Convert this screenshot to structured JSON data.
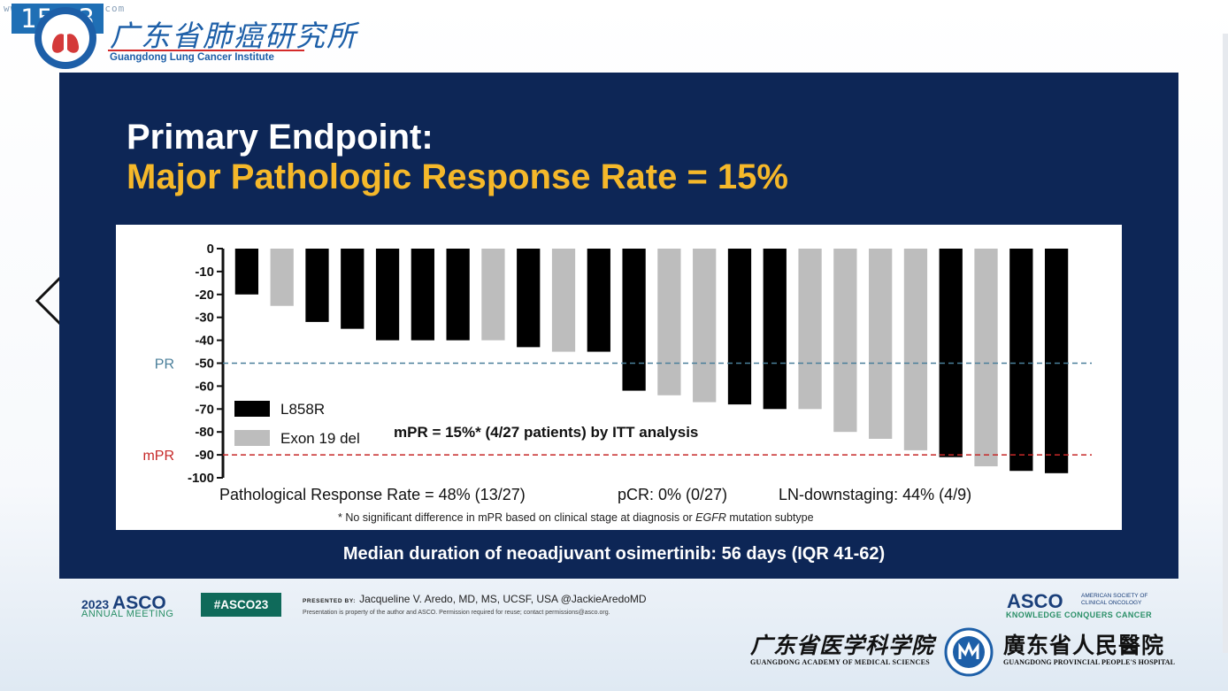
{
  "overlay": {
    "clock": "15:03",
    "watermark": "www.yunjiangwu.com"
  },
  "header": {
    "institute_cn": "广东省肺癌研究所",
    "institute_en": "Guangdong Lung Cancer Institute"
  },
  "slide": {
    "title_line1": "Primary Endpoint:",
    "title_line2": "Major Pathologic Response Rate = 15%",
    "stat_response": "Pathological  Response Rate = 48% (13/27)",
    "stat_pcr": "pCR: 0% (0/27)",
    "stat_ln": "LN-downstaging: 44% (4/9)",
    "footnote_pre": "* No significant difference in mPR based on clinical stage at diagnosis or ",
    "footnote_em": "EGFR",
    "footnote_post": " mutation subtype",
    "median": "Median duration of neoadjuvant osimertinib: 56 days (IQR 41-62)"
  },
  "footer": {
    "asco_year": "2023",
    "asco_name": "ASCO",
    "asco_sub": "ANNUAL MEETING",
    "hashtag": "#ASCO23",
    "presented_label": "PRESENTED BY:",
    "presenter": "Jacqueline V. Aredo, MD, MS, UCSF, USA @JackieAredoMD",
    "property_note": "Presentation is property of the author and ASCO. Permission required for reuse; contact permissions@asco.org.",
    "asco_logo": "ASCO",
    "asco_logo_sub": "AMERICAN SOCIETY OF CLINICAL ONCOLOGY",
    "asco_tagline": "KNOWLEDGE CONQUERS CANCER",
    "gams_cn": "广东省医学科学院",
    "gams_en": "GUANGDONG ACADEMY OF MEDICAL SCIENCES",
    "gph_cn": "廣东省人民醫院",
    "gph_en": "GUANGDONG PROVINCIAL PEOPLE'S HOSPITAL"
  },
  "colors": {
    "slide_bg": "#0d2656",
    "title_accent": "#f5b82a",
    "l858r": "#000000",
    "exon19": "#bdbdbd",
    "pr_line": "#4a7f9a",
    "mpr_line": "#c62828"
  },
  "chart_data": {
    "type": "bar",
    "subtype": "waterfall",
    "ylim": [
      -100,
      0
    ],
    "yticks": [
      "0",
      "-10",
      "-20",
      "-30",
      "-40",
      "-50",
      "-60",
      "-70",
      "-80",
      "-90",
      "-100"
    ],
    "series": [
      {
        "name": "L858R",
        "color": "#000000"
      },
      {
        "name": "Exon 19 del",
        "color": "#bdbdbd"
      }
    ],
    "bars": [
      {
        "value": -20,
        "series": "L858R"
      },
      {
        "value": -25,
        "series": "Exon 19 del"
      },
      {
        "value": -32,
        "series": "L858R"
      },
      {
        "value": -35,
        "series": "L858R"
      },
      {
        "value": -40,
        "series": "L858R"
      },
      {
        "value": -40,
        "series": "L858R"
      },
      {
        "value": -40,
        "series": "L858R"
      },
      {
        "value": -40,
        "series": "Exon 19 del"
      },
      {
        "value": -43,
        "series": "L858R"
      },
      {
        "value": -45,
        "series": "Exon 19 del"
      },
      {
        "value": -45,
        "series": "L858R"
      },
      {
        "value": -62,
        "series": "L858R"
      },
      {
        "value": -64,
        "series": "Exon 19 del"
      },
      {
        "value": -67,
        "series": "Exon 19 del"
      },
      {
        "value": -68,
        "series": "L858R"
      },
      {
        "value": -70,
        "series": "L858R"
      },
      {
        "value": -70,
        "series": "Exon 19 del"
      },
      {
        "value": -80,
        "series": "Exon 19 del"
      },
      {
        "value": -83,
        "series": "Exon 19 del"
      },
      {
        "value": -88,
        "series": "Exon 19 del"
      },
      {
        "value": -91,
        "series": "L858R"
      },
      {
        "value": -95,
        "series": "Exon 19 del"
      },
      {
        "value": -97,
        "series": "L858R"
      },
      {
        "value": -98,
        "series": "L858R"
      }
    ],
    "reference_lines": [
      {
        "label": "PR",
        "value": -50,
        "color": "#4a7f9a",
        "style": "dashed"
      },
      {
        "label": "mPR",
        "value": -90,
        "color": "#c62828",
        "style": "dashed"
      }
    ],
    "annotation": "mPR = 15%* (4/27 patients) by ITT analysis",
    "legend_position": "left"
  }
}
